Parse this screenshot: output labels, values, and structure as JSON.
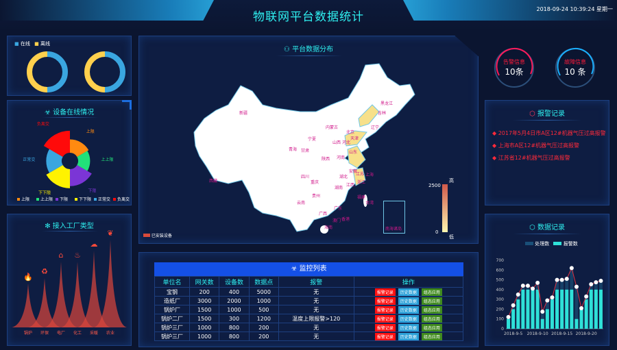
{
  "header": {
    "title": "物联网平台数据统计",
    "datetime": "2018-09-24 10:39:24 星期一"
  },
  "status_donuts": {
    "legend": [
      {
        "label": "在线",
        "color": "#3aa6e0"
      },
      {
        "label": "离线",
        "color": "#ffd04d"
      }
    ],
    "charts": [
      {
        "online": 50,
        "offline": 50
      },
      {
        "online": 50,
        "offline": 50
      }
    ]
  },
  "device_online": {
    "title": "设备在线情况",
    "icon": "biohazard-icon",
    "chart_data": {
      "type": "rose-pie",
      "categories": [
        "上限",
        "上上限",
        "下限",
        "下下限",
        "正常交",
        "负离交"
      ],
      "values": [
        30,
        28,
        35,
        38,
        33,
        42
      ],
      "colors": [
        "#ff8a10",
        "#22e07a",
        "#7b35d6",
        "#fff200",
        "#3aa6e0",
        "#ff0a0a"
      ]
    }
  },
  "factory_types": {
    "title": "接入工厂类型",
    "icon": "snowflake-icon",
    "chart_data": {
      "type": "peak",
      "categories": [
        "锅炉",
        "环保",
        "电厂",
        "化工",
        "采暖",
        "农业"
      ],
      "icons": [
        "fire-icon",
        "recycle-icon",
        "factory-icon",
        "chemical-icon",
        "heating-icon",
        "leaf-icon"
      ],
      "values": [
        40,
        45,
        60,
        60,
        70,
        80
      ]
    }
  },
  "map": {
    "title": "平台数据分布",
    "legend_label": "已安装设备",
    "scale_high": "高",
    "scale_low": "低",
    "scale_max": "2500",
    "scale_min": "0",
    "south_sea": "南海诸岛",
    "highlighted": [
      "辽宁",
      "山东",
      "江苏",
      "浙江"
    ],
    "provinces": [
      "新疆",
      "西藏",
      "青海",
      "甘肃",
      "宁夏",
      "内蒙古",
      "黑龙江",
      "吉林",
      "辽宁",
      "北京",
      "天津",
      "河北",
      "山西",
      "陕西",
      "河南",
      "山东",
      "江苏",
      "安徽",
      "上海",
      "浙江",
      "湖北",
      "四川",
      "重庆",
      "贵州",
      "云南",
      "湖南",
      "江西",
      "福建",
      "台湾",
      "广东",
      "广西",
      "海南",
      "香港",
      "澳门"
    ]
  },
  "monitor": {
    "title": "监控列表",
    "columns": [
      "单位名",
      "网关数",
      "设备数",
      "数据点",
      "报警",
      "操作"
    ],
    "rows": [
      [
        "宝钢",
        "200",
        "400",
        "5000",
        "无"
      ],
      [
        "造纸厂",
        "3000",
        "2000",
        "1000",
        "无"
      ],
      [
        "锅炉厂",
        "1500",
        "1000",
        "500",
        "无"
      ],
      [
        "锅炉二厂",
        "1500",
        "300",
        "1200",
        "温度上限报警>120"
      ],
      [
        "锅炉三厂",
        "1000",
        "800",
        "200",
        "无"
      ],
      [
        "锅炉三厂",
        "1000",
        "800",
        "200",
        "无"
      ]
    ],
    "actions": [
      "报警记录",
      "历史数据",
      "组态应用"
    ]
  },
  "counters": [
    {
      "label": "告警信息",
      "value": "10条",
      "color": "#ff1a3a"
    },
    {
      "label": "故障信息",
      "value": "10 条",
      "color": "#1ad0ff"
    }
  ],
  "alarm_records": {
    "title": "报警记录",
    "items": [
      "2017年5月4日市A区12#机器气压过高报警",
      "上海市A区12#机器气压过高报警",
      "江苏省12#机器气压过高报警"
    ]
  },
  "data_records": {
    "title": "数据记录",
    "chart_data": {
      "type": "bar+line",
      "legend": [
        "处理数",
        "报警数"
      ],
      "ylim": [
        0,
        700
      ],
      "yticks": [
        0,
        100,
        200,
        300,
        400,
        500,
        600,
        700
      ],
      "x": [
        "2018-9-4",
        "2018-9-5",
        "2018-9-6",
        "2018-9-7",
        "2018-9-8",
        "2018-9-9",
        "2018-9-10",
        "2018-9-11",
        "2018-9-12",
        "2018-9-13",
        "2018-9-14",
        "2018-9-15",
        "2018-9-16",
        "2018-9-17",
        "2018-9-18",
        "2018-9-19",
        "2018-9-20",
        "2018-9-21",
        "2018-9-22",
        "2018-9-23"
      ],
      "xticks": [
        "2018-9-5",
        "2018-9-10",
        "2018-9-15",
        "2018-9-20"
      ],
      "series": [
        {
          "name": "处理数",
          "values": [
            120,
            240,
            350,
            440,
            440,
            410,
            470,
            175,
            290,
            320,
            500,
            500,
            510,
            620,
            430,
            210,
            330,
            455,
            475,
            490
          ]
        },
        {
          "name": "报警数",
          "values": [
            100,
            200,
            300,
            400,
            400,
            400,
            400,
            100,
            200,
            300,
            400,
            400,
            400,
            400,
            100,
            200,
            300,
            400,
            400,
            400
          ]
        }
      ]
    }
  }
}
